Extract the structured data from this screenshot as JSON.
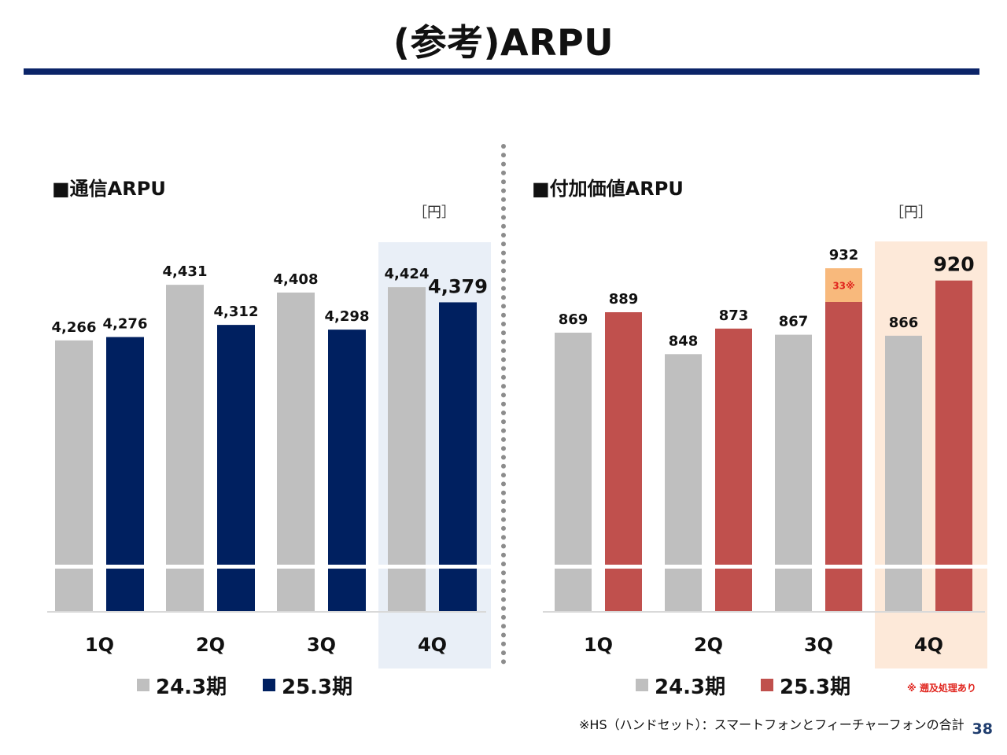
{
  "page": {
    "title": "(参考)ARPU",
    "footnote": "※HS（ハンドセット）：スマートフォンとフィーチャーフォンの合計",
    "page_number": "38"
  },
  "chart_data": [
    {
      "type": "bar",
      "title": "■通信ARPU",
      "unit": "［円］",
      "categories": [
        "1Q",
        "2Q",
        "3Q",
        "4Q"
      ],
      "series": [
        {
          "name": "24.3期",
          "color": "#bfbfbf",
          "values": [
            4266,
            4431,
            4408,
            4424
          ]
        },
        {
          "name": "25.3期",
          "color": "#002060",
          "values": [
            4276,
            4312,
            4298,
            4379
          ]
        }
      ],
      "value_labels": [
        [
          "4,266",
          "4,431",
          "4,408",
          "4,424"
        ],
        [
          "4,276",
          "4,312",
          "4,298",
          "4,379"
        ]
      ],
      "highlight_category": "4Q",
      "highlight_color": "#e9eff7",
      "axis_break": true,
      "visible_range": [
        3500,
        4470
      ]
    },
    {
      "type": "bar",
      "title": "■付加価値ARPU",
      "unit": "［円］",
      "categories": [
        "1Q",
        "2Q",
        "3Q",
        "4Q"
      ],
      "series": [
        {
          "name": "24.3期",
          "color": "#bfbfbf",
          "values": [
            869,
            848,
            867,
            866
          ]
        },
        {
          "name": "25.3期",
          "color": "#c0504d",
          "values": [
            889,
            873,
            932,
            920
          ]
        }
      ],
      "value_labels": [
        [
          "869",
          "848",
          "867",
          "866"
        ],
        [
          "889",
          "873",
          "932",
          "920"
        ]
      ],
      "stacked_segment": {
        "category": "3Q",
        "series": "25.3期",
        "value": 33,
        "label": "33※",
        "color": "#f8b97c"
      },
      "legend_note": "※ 遡及処理あり",
      "highlight_category": "4Q",
      "highlight_color": "#fde9d9",
      "axis_break": true,
      "visible_range": [
        700,
        940
      ]
    }
  ]
}
